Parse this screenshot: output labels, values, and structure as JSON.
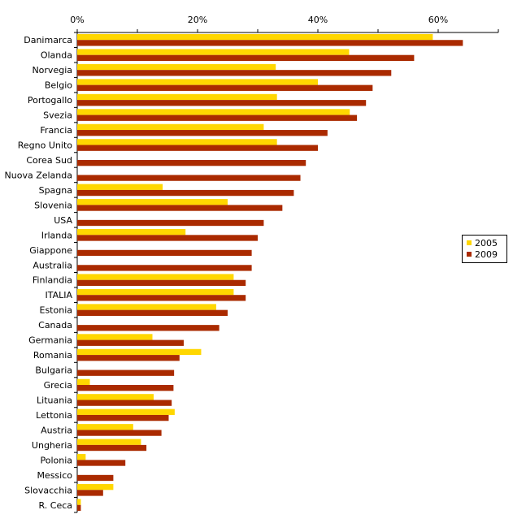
{
  "colors": {
    "series_2005": "#FFD700",
    "series_2009": "#AA2A00",
    "axis": "#000000"
  },
  "chart_data": {
    "type": "bar",
    "orientation": "horizontal",
    "title": "",
    "xlabel": "",
    "ylabel": "",
    "xlim": [
      0,
      70
    ],
    "x_ticks": [
      "0%",
      "20%",
      "40%",
      "60%"
    ],
    "x_axis_position": "top",
    "grid": false,
    "legend_position": "right",
    "categories": [
      "Danimarca",
      "Olanda",
      "Norvegia",
      "Belgio",
      "Portogallo",
      "Svezia",
      "Francia",
      "Regno Unito",
      "Corea Sud",
      "Nuova Zelanda",
      "Spagna",
      "Slovenia",
      "USA",
      "Irlanda",
      "Giappone",
      "Australia",
      "Finlandia",
      "ITALIA",
      "Estonia",
      "Canada",
      "Germania",
      "Romania",
      "Bulgaria",
      "Grecia",
      "Lituania",
      "Lettonia",
      "Austria",
      "Ungheria",
      "Polonia",
      "Messico",
      "Slovacchia",
      "R. Ceca"
    ],
    "series": [
      {
        "name": "2005",
        "values": [
          59.1,
          45.2,
          33.0,
          40.0,
          33.2,
          45.3,
          31.0,
          33.2,
          null,
          null,
          14.2,
          25.0,
          null,
          18.0,
          null,
          null,
          26.0,
          26.0,
          23.1,
          null,
          12.5,
          20.6,
          null,
          2.1,
          12.7,
          16.2,
          9.3,
          10.6,
          1.4,
          null,
          6.0,
          0.6
        ]
      },
      {
        "name": "2009",
        "values": [
          64.1,
          56.0,
          52.2,
          49.1,
          48.0,
          46.5,
          41.6,
          40.0,
          38.0,
          37.1,
          36.0,
          34.1,
          31.0,
          30.0,
          29.0,
          29.0,
          28.0,
          28.0,
          25.0,
          23.6,
          17.7,
          17.0,
          16.1,
          16.0,
          15.7,
          15.2,
          14.0,
          11.5,
          8.0,
          6.0,
          4.3,
          0.6
        ]
      }
    ]
  }
}
